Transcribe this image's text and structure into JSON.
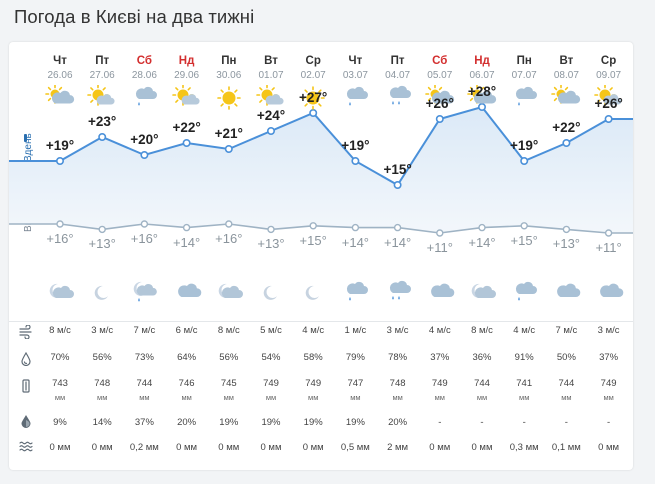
{
  "title": "Погода в Києві на два тижні",
  "labels": {
    "day": "Вдень",
    "night": "Вночі"
  },
  "units": {
    "wind": "м/с",
    "humidity": "%",
    "pressure": "мм",
    "precip_prob": "%",
    "precip": "мм"
  },
  "colors": {
    "day_line": "#4a90d9",
    "night_line": "#9fb3c4",
    "weekend": "#d32f2f",
    "sun": "#f5c518",
    "cloud": "#a9c1d6"
  },
  "days": [
    {
      "name": "Чт",
      "date": "26.06",
      "weekend": false,
      "icon_day": "cloud-sun-icon",
      "icon_night": "cloud-moon-icon",
      "t_day": "+19°",
      "t_night": "+16°",
      "wind": "8 м/с",
      "humidity": "70%",
      "pressure": "743",
      "pressure_unit": "мм",
      "precip_prob": "9%",
      "precip": "0 мм"
    },
    {
      "name": "Пт",
      "date": "27.06",
      "weekend": false,
      "icon_day": "sun-cloud-icon",
      "icon_night": "moon-icon",
      "t_day": "+23°",
      "t_night": "+13°",
      "wind": "3 м/с",
      "humidity": "56%",
      "pressure": "748",
      "pressure_unit": "мм",
      "precip_prob": "14%",
      "precip": "0 мм"
    },
    {
      "name": "Сб",
      "date": "28.06",
      "weekend": true,
      "icon_day": "cloud-rain-light-icon",
      "icon_night": "cloud-moon-rain-icon",
      "t_day": "+20°",
      "t_night": "+16°",
      "wind": "7 м/с",
      "humidity": "73%",
      "pressure": "744",
      "pressure_unit": "мм",
      "precip_prob": "37%",
      "precip": "0,2 мм"
    },
    {
      "name": "Нд",
      "date": "29.06",
      "weekend": true,
      "icon_day": "sun-cloud-icon",
      "icon_night": "cloud-icon",
      "t_day": "+22°",
      "t_night": "+14°",
      "wind": "6 м/с",
      "humidity": "64%",
      "pressure": "746",
      "pressure_unit": "мм",
      "precip_prob": "20%",
      "precip": "0 мм"
    },
    {
      "name": "Пн",
      "date": "30.06",
      "weekend": false,
      "icon_day": "sun-icon",
      "icon_night": "cloud-moon-icon",
      "t_day": "+21°",
      "t_night": "+16°",
      "wind": "8 м/с",
      "humidity": "56%",
      "pressure": "745",
      "pressure_unit": "мм",
      "precip_prob": "19%",
      "precip": "0 мм"
    },
    {
      "name": "Вт",
      "date": "01.07",
      "weekend": false,
      "icon_day": "sun-cloud-icon",
      "icon_night": "moon-icon",
      "t_day": "+24°",
      "t_night": "+13°",
      "wind": "5 м/с",
      "humidity": "54%",
      "pressure": "749",
      "pressure_unit": "мм",
      "precip_prob": "19%",
      "precip": "0 мм"
    },
    {
      "name": "Ср",
      "date": "02.07",
      "weekend": false,
      "icon_day": "sun-icon",
      "icon_night": "moon-icon",
      "t_day": "+27°",
      "t_night": "+15°",
      "wind": "4 м/с",
      "humidity": "58%",
      "pressure": "749",
      "pressure_unit": "мм",
      "precip_prob": "19%",
      "precip": "0 мм"
    },
    {
      "name": "Чт",
      "date": "03.07",
      "weekend": false,
      "icon_day": "cloud-rain-light-icon",
      "icon_night": "cloud-rain-light-icon",
      "t_day": "+19°",
      "t_night": "+14°",
      "wind": "1 м/с",
      "humidity": "79%",
      "pressure": "747",
      "pressure_unit": "мм",
      "precip_prob": "19%",
      "precip": "0,5 мм"
    },
    {
      "name": "Пт",
      "date": "04.07",
      "weekend": false,
      "icon_day": "cloud-rain-icon",
      "icon_night": "cloud-rain-icon",
      "t_day": "+15°",
      "t_night": "+14°",
      "wind": "3 м/с",
      "humidity": "78%",
      "pressure": "748",
      "pressure_unit": "мм",
      "precip_prob": "20%",
      "precip": "2 мм"
    },
    {
      "name": "Сб",
      "date": "05.07",
      "weekend": true,
      "icon_day": "cloud-sun-icon",
      "icon_night": "cloud-icon",
      "t_day": "+26°",
      "t_night": "+11°",
      "wind": "4 м/с",
      "humidity": "37%",
      "pressure": "749",
      "pressure_unit": "мм",
      "precip_prob": "-",
      "precip": "0 мм"
    },
    {
      "name": "Нд",
      "date": "06.07",
      "weekend": true,
      "icon_day": "cloud-sun-icon",
      "icon_night": "cloud-moon-icon",
      "t_day": "+28°",
      "t_night": "+14°",
      "wind": "8 м/с",
      "humidity": "36%",
      "pressure": "744",
      "pressure_unit": "мм",
      "precip_prob": "-",
      "precip": "0 мм"
    },
    {
      "name": "Пн",
      "date": "07.07",
      "weekend": false,
      "icon_day": "cloud-rain-light-icon",
      "icon_night": "cloud-rain-light-icon",
      "t_day": "+19°",
      "t_night": "+15°",
      "wind": "4 м/с",
      "humidity": "91%",
      "pressure": "741",
      "pressure_unit": "мм",
      "precip_prob": "-",
      "precip": "0,3 мм"
    },
    {
      "name": "Вт",
      "date": "08.07",
      "weekend": false,
      "icon_day": "cloud-sun-icon",
      "icon_night": "cloud-icon",
      "t_day": "+22°",
      "t_night": "+13°",
      "wind": "7 м/с",
      "humidity": "50%",
      "pressure": "744",
      "pressure_unit": "мм",
      "precip_prob": "-",
      "precip": "0,1 мм"
    },
    {
      "name": "Ср",
      "date": "09.07",
      "weekend": false,
      "icon_day": "sun-cloud-icon",
      "icon_night": "cloud-icon",
      "t_day": "+26°",
      "t_night": "+11°",
      "wind": "3 м/с",
      "humidity": "37%",
      "pressure": "749",
      "pressure_unit": "мм",
      "precip_prob": "-",
      "precip": "0 мм"
    }
  ],
  "rows": [
    {
      "icon": "wind-icon",
      "key": "wind"
    },
    {
      "icon": "humidity-drop-icon",
      "key": "humidity"
    },
    {
      "icon": "barometer-icon",
      "key": "pressure"
    },
    {
      "icon": "precip-probability-icon",
      "key": "precip_prob"
    },
    {
      "icon": "precipitation-icon",
      "key": "precip"
    }
  ]
}
